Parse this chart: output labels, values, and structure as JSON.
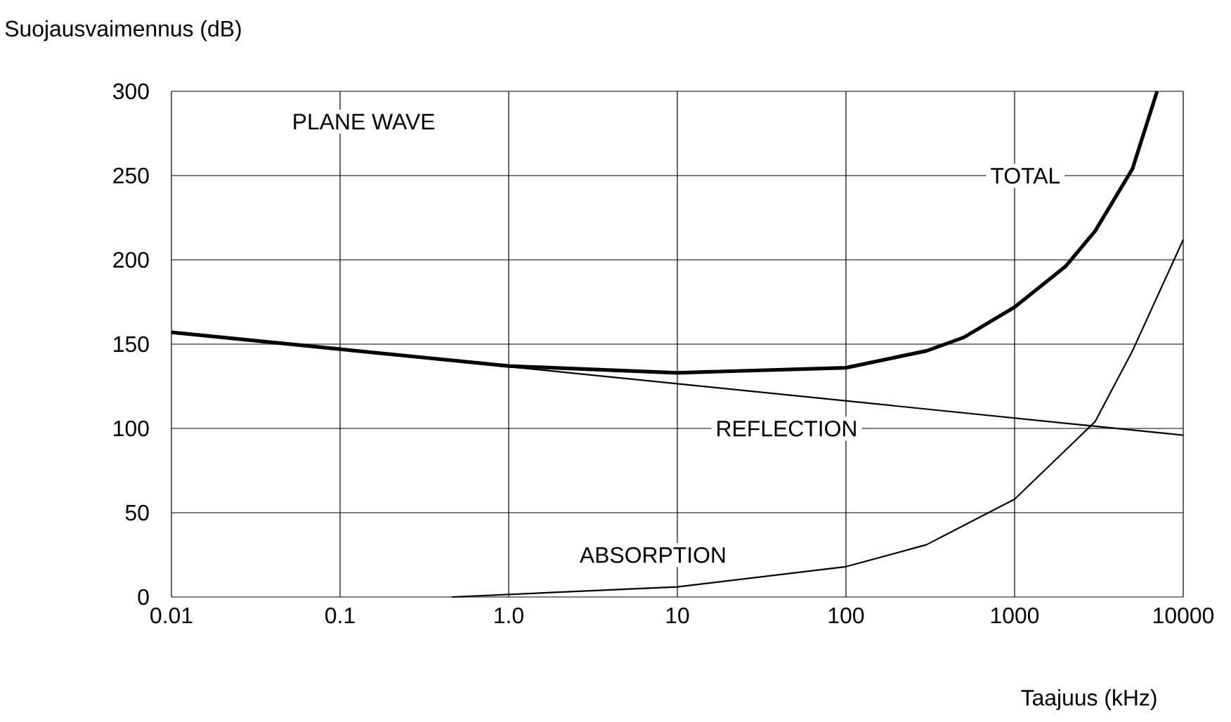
{
  "chart_data": {
    "type": "line",
    "xlabel": "Taajuus (kHz)",
    "ylabel": "Suojausvaimennus (dB)",
    "log": "x",
    "xlim": [
      0.01,
      10000
    ],
    "ylim": [
      0,
      300
    ],
    "xticks": [
      0.01,
      0.1,
      {
        "value": 1,
        "label": "1.0"
      },
      10,
      100,
      1000,
      10000
    ],
    "yticks": [
      0,
      50,
      100,
      150,
      200,
      250,
      300
    ],
    "grid": true,
    "legend": false,
    "marker": "none",
    "line_style": "solid",
    "series": [
      {
        "name": "TOTAL",
        "color": "#000000",
        "x": [
          0.01,
          0.1,
          1,
          10,
          100,
          300,
          500,
          1000,
          2000,
          3000,
          5000,
          7000
        ],
        "values": [
          157,
          147,
          137,
          133,
          136,
          146,
          154,
          172,
          196,
          217,
          254,
          300
        ]
      },
      {
        "name": "REFLECTION",
        "color": "#000000",
        "x": [
          0.01,
          10000
        ],
        "values": [
          157,
          96
        ]
      },
      {
        "name": "ABSORPTION",
        "color": "#000000",
        "x": [
          0.46,
          10,
          100,
          300,
          1000,
          3000,
          5000,
          10000
        ],
        "values": [
          0,
          6,
          18,
          31,
          58,
          104,
          146,
          212
        ]
      }
    ],
    "annotations": [
      "PLANE WAVE"
    ]
  }
}
